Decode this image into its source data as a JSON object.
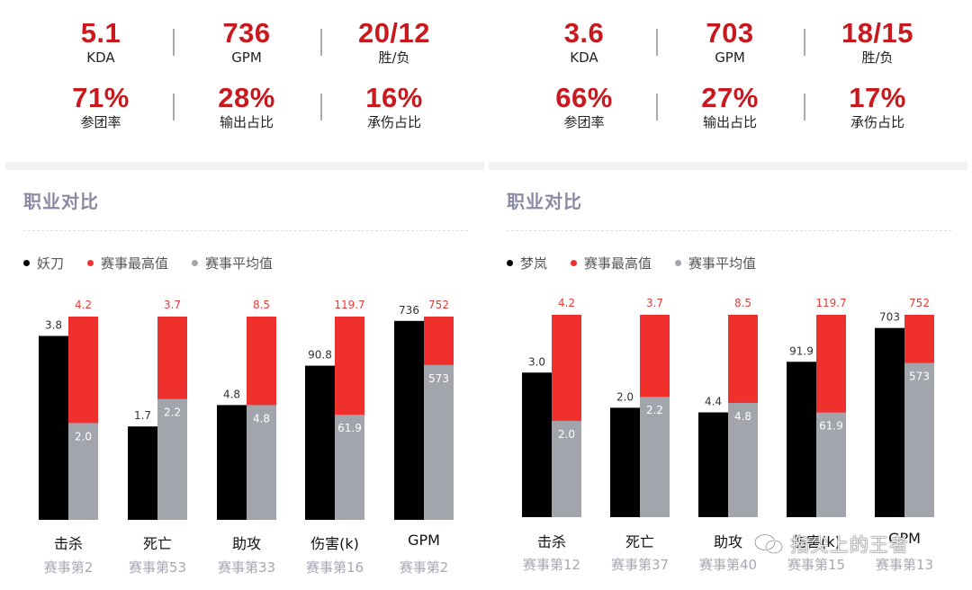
{
  "legend": {
    "max_label": "赛事最高值",
    "avg_label": "赛事平均值"
  },
  "colors": {
    "stat_value": "#c8191f",
    "player_bar": "#000000",
    "max_bar": "#f0302d",
    "avg_bar": "#a3a5ac",
    "section_title": "#8a8aa6",
    "rank_text": "#a7a8b4"
  },
  "watermark": {
    "text": "指尖上的王者",
    "icon": "wechat-icon"
  },
  "panels": [
    {
      "stats": [
        {
          "value": "5.1",
          "label": "KDA"
        },
        {
          "value": "736",
          "label": "GPM"
        },
        {
          "value": "20/12",
          "label": "胜/负"
        },
        {
          "value": "71%",
          "label": "参团率"
        },
        {
          "value": "28%",
          "label": "输出占比"
        },
        {
          "value": "16%",
          "label": "承伤占比"
        }
      ],
      "section_title": "职业对比",
      "player_name": "妖刀",
      "categories": [
        {
          "name": "击杀",
          "rank": "赛事第2"
        },
        {
          "name": "死亡",
          "rank": "赛事第53"
        },
        {
          "name": "助攻",
          "rank": "赛事第33"
        },
        {
          "name": "伤害(k)",
          "rank": "赛事第16"
        },
        {
          "name": "GPM",
          "rank": "赛事第2"
        }
      ]
    },
    {
      "stats": [
        {
          "value": "3.6",
          "label": "KDA"
        },
        {
          "value": "703",
          "label": "GPM"
        },
        {
          "value": "18/15",
          "label": "胜/负"
        },
        {
          "value": "66%",
          "label": "参团率"
        },
        {
          "value": "27%",
          "label": "输出占比"
        },
        {
          "value": "17%",
          "label": "承伤占比"
        }
      ],
      "section_title": "职业对比",
      "player_name": "梦岚",
      "categories": [
        {
          "name": "击杀",
          "rank": "赛事第12"
        },
        {
          "name": "死亡",
          "rank": "赛事第37"
        },
        {
          "name": "助攻",
          "rank": "赛事第40"
        },
        {
          "name": "伤害(k)",
          "rank": "赛事第15"
        },
        {
          "name": "GPM",
          "rank": "赛事第13"
        }
      ]
    }
  ],
  "chart_data": [
    {
      "type": "bar",
      "categories": [
        "击杀",
        "死亡",
        "助攻",
        "伤害(k)",
        "GPM"
      ],
      "note_scale": "each category is normalized to its own 赛事最高值",
      "series": [
        {
          "name": "妖刀",
          "values": [
            "3.8",
            "1.7",
            "4.8",
            "90.8",
            "736"
          ]
        },
        {
          "name": "赛事最高值",
          "values": [
            "4.2",
            "3.7",
            "8.5",
            "119.7",
            "752"
          ]
        },
        {
          "name": "赛事平均值",
          "values": [
            "2.0",
            "2.2",
            "4.8",
            "61.9",
            "573"
          ]
        }
      ]
    },
    {
      "type": "bar",
      "categories": [
        "击杀",
        "死亡",
        "助攻",
        "伤害(k)",
        "GPM"
      ],
      "note_scale": "each category is normalized to its own 赛事最高值",
      "series": [
        {
          "name": "梦岚",
          "values": [
            "3.0",
            "2.0",
            "4.4",
            "91.9",
            "703"
          ]
        },
        {
          "name": "赛事最高值",
          "values": [
            "4.2",
            "3.7",
            "8.5",
            "119.7",
            "752"
          ]
        },
        {
          "name": "赛事平均值",
          "values": [
            "2.0",
            "2.2",
            "4.8",
            "61.9",
            "573"
          ]
        }
      ]
    }
  ]
}
